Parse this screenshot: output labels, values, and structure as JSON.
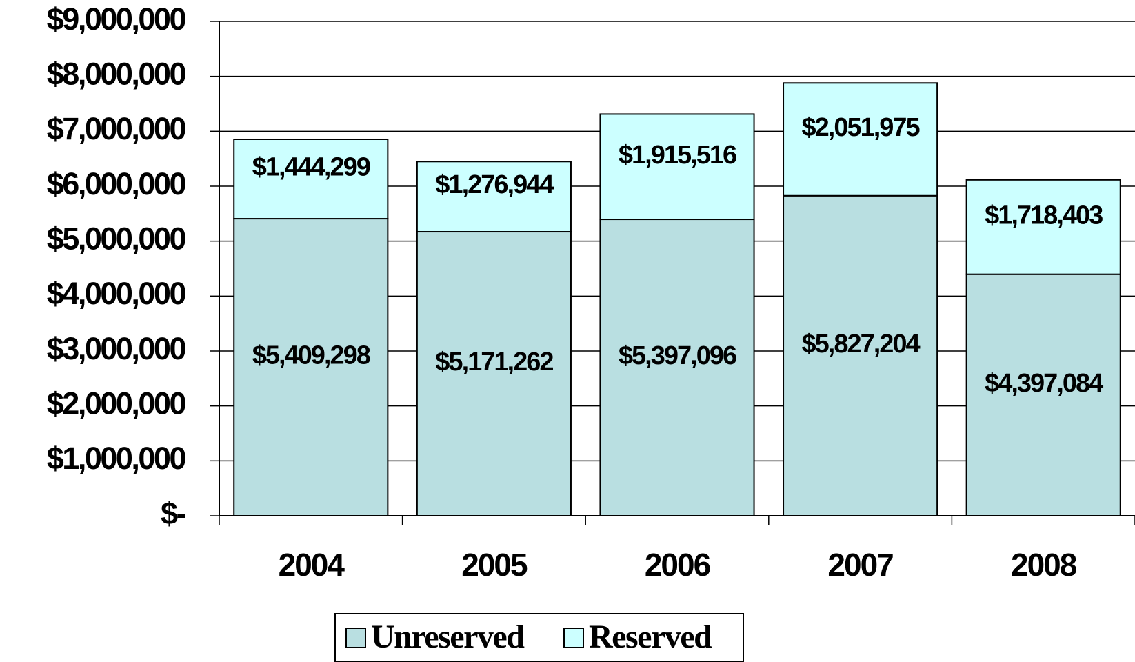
{
  "chart_data": {
    "type": "stacked_bar",
    "categories": [
      "2004",
      "2005",
      "2006",
      "2007",
      "2008"
    ],
    "series": [
      {
        "name": "Unreserved",
        "color": "#b9dfe1",
        "values": [
          5409298,
          5171262,
          5397096,
          5827204,
          4397084
        ],
        "value_labels": [
          "$5,409,298",
          "$5,171,262",
          "$5,397,096",
          "$5,827,204",
          "$4,397,084"
        ]
      },
      {
        "name": "Reserved",
        "color": "#ccffff",
        "values": [
          1444299,
          1276944,
          1915516,
          2051975,
          1718403
        ],
        "value_labels": [
          "$1,444,299",
          "$1,276,944",
          "$1,915,516",
          "$2,051,975",
          "$1,718,403"
        ]
      }
    ],
    "ylim": [
      0,
      9000000
    ],
    "yticks": [
      {
        "value": 0,
        "label": "$-"
      },
      {
        "value": 1000000,
        "label": "$1,000,000"
      },
      {
        "value": 2000000,
        "label": "$2,000,000"
      },
      {
        "value": 3000000,
        "label": "$3,000,000"
      },
      {
        "value": 4000000,
        "label": "$4,000,000"
      },
      {
        "value": 5000000,
        "label": "$5,000,000"
      },
      {
        "value": 6000000,
        "label": "$6,000,000"
      },
      {
        "value": 7000000,
        "label": "$7,000,000"
      },
      {
        "value": 8000000,
        "label": "$8,000,000"
      },
      {
        "value": 9000000,
        "label": "$9,000,000"
      }
    ],
    "grid": true,
    "legend": "bottom"
  }
}
